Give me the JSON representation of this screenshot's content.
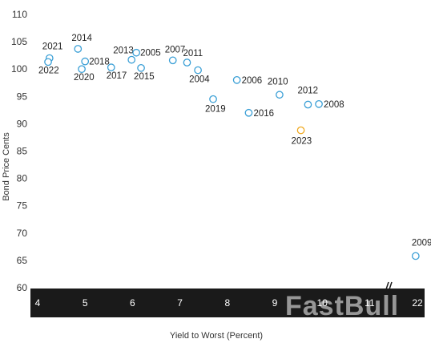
{
  "chart_data": {
    "type": "scatter",
    "xlabel": "Yield to Worst (Percent)",
    "ylabel": "Bond Price Cents",
    "ylim": [
      60,
      110
    ],
    "yticks": [
      "60",
      "65",
      "70",
      "75",
      "80",
      "85",
      "90",
      "95",
      "100",
      "105",
      "110"
    ],
    "xlim": [
      4,
      22
    ],
    "xticks": [
      "4",
      "5",
      "6",
      "7",
      "8",
      "9",
      "10",
      "11",
      "22"
    ],
    "axis_break_after": 11,
    "grid": false,
    "colors": {
      "default": "#3a9fd6",
      "highlight": "#f0a81e",
      "axis_band": "#1a1a1a"
    },
    "points": [
      {
        "label": "2021",
        "x": 4.25,
        "y": 102.0
      },
      {
        "label": "2022",
        "x": 4.22,
        "y": 101.3
      },
      {
        "label": "2014",
        "x": 4.85,
        "y": 103.7
      },
      {
        "label": "2018",
        "x": 5.0,
        "y": 101.4
      },
      {
        "label": "2020",
        "x": 4.93,
        "y": 100.0
      },
      {
        "label": "2017",
        "x": 5.55,
        "y": 100.3
      },
      {
        "label": "2013",
        "x": 5.98,
        "y": 101.7
      },
      {
        "label": "2005",
        "x": 6.08,
        "y": 103.0
      },
      {
        "label": "2015",
        "x": 6.18,
        "y": 100.2
      },
      {
        "label": "2007",
        "x": 6.85,
        "y": 101.6
      },
      {
        "label": "2011",
        "x": 7.15,
        "y": 101.2
      },
      {
        "label": "2004",
        "x": 7.38,
        "y": 99.8
      },
      {
        "label": "2019",
        "x": 7.7,
        "y": 94.5
      },
      {
        "label": "2006",
        "x": 8.2,
        "y": 98.0
      },
      {
        "label": "2016",
        "x": 8.45,
        "y": 92.0
      },
      {
        "label": "2010",
        "x": 9.1,
        "y": 95.3
      },
      {
        "label": "2012",
        "x": 9.7,
        "y": 93.5
      },
      {
        "label": "2008",
        "x": 9.93,
        "y": 93.6
      },
      {
        "label": "2023",
        "x": 9.55,
        "y": 88.8,
        "highlight": true
      },
      {
        "label": "2009",
        "x": 21.6,
        "y": 65.8
      }
    ]
  },
  "watermark": "FastBull"
}
